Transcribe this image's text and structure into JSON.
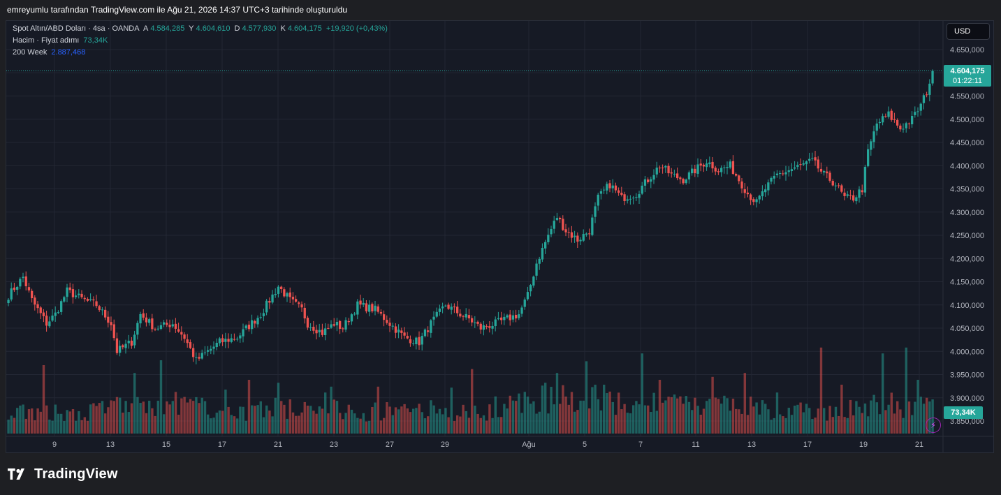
{
  "header": {
    "attribution": "emreyumlu tarafından TradingView.com ile Ağu 21, 2026 14:37 UTC+3 tarihinde oluşturuldu"
  },
  "legend": {
    "symbol": "Spot Altın/ABD Doları · 4sa · OANDA",
    "open_label": "A",
    "open_value": "4.584,285",
    "high_label": "Y",
    "high_value": "4.604,610",
    "low_label": "D",
    "low_value": "4.577,930",
    "close_label": "K",
    "close_value": "4.604,175",
    "change": "+19,920 (+0,43%)",
    "volume_label": "Hacim · Fiyat adımı",
    "volume_value": "73,34K",
    "ma_label": "200 Week",
    "ma_value": "2.887,468"
  },
  "toolbar": {
    "currency_label": "USD"
  },
  "price_tag": {
    "value": "4.604,175",
    "countdown": "01:22:11"
  },
  "volume_tag": {
    "value": "73,34K"
  },
  "alert_icon": "lightning-icon",
  "brand": {
    "logo_text": "TradingView"
  },
  "colors": {
    "up": "#26a69a",
    "down": "#ef5350",
    "background": "#161a25",
    "ma_line": "#2962ff"
  },
  "chart_data": {
    "type": "candlestick",
    "y_axis_labels": [
      "4.650,000",
      "4.600,000",
      "4.550,000",
      "4.500,000",
      "4.450,000",
      "4.400,000",
      "4.350,000",
      "4.300,000",
      "4.250,000",
      "4.200,000",
      "4.150,000",
      "4.100,000",
      "4.050,000",
      "4.000,000",
      "3.950,000",
      "3.900,000",
      "3.850,000"
    ],
    "y_axis_values": [
      4650,
      4600,
      4550,
      4500,
      4450,
      4400,
      4350,
      4300,
      4250,
      4200,
      4150,
      4100,
      4050,
      4000,
      3950,
      3900,
      3850
    ],
    "x_axis_labels": [
      "9",
      "13",
      "15",
      "17",
      "21",
      "23",
      "27",
      "29",
      "Ağu",
      "5",
      "7",
      "11",
      "13",
      "17",
      "19",
      "21"
    ],
    "last_close": 4604.175,
    "grid": true,
    "anchors": [
      [
        0,
        4120
      ],
      [
        5,
        4160
      ],
      [
        8,
        4110
      ],
      [
        10,
        4090
      ],
      [
        13,
        4060
      ],
      [
        16,
        4080
      ],
      [
        20,
        4130
      ],
      [
        26,
        4110
      ],
      [
        30,
        4100
      ],
      [
        35,
        4060
      ],
      [
        37,
        4000
      ],
      [
        42,
        4020
      ],
      [
        45,
        4080
      ],
      [
        50,
        4050
      ],
      [
        56,
        4060
      ],
      [
        60,
        4030
      ],
      [
        64,
        3980
      ],
      [
        68,
        4000
      ],
      [
        72,
        4020
      ],
      [
        78,
        4030
      ],
      [
        86,
        4080
      ],
      [
        92,
        4140
      ],
      [
        96,
        4110
      ],
      [
        100,
        4090
      ],
      [
        102,
        4060
      ],
      [
        107,
        4040
      ],
      [
        111,
        4060
      ],
      [
        114,
        4050
      ],
      [
        119,
        4100
      ],
      [
        125,
        4090
      ],
      [
        130,
        4060
      ],
      [
        135,
        4030
      ],
      [
        140,
        4020
      ],
      [
        144,
        4060
      ],
      [
        149,
        4100
      ],
      [
        154,
        4080
      ],
      [
        157,
        4070
      ],
      [
        161,
        4050
      ],
      [
        166,
        4060
      ],
      [
        170,
        4070
      ],
      [
        174,
        4080
      ],
      [
        177,
        4120
      ],
      [
        180,
        4190
      ],
      [
        184,
        4250
      ],
      [
        187,
        4290
      ],
      [
        190,
        4260
      ],
      [
        194,
        4240
      ],
      [
        198,
        4260
      ],
      [
        201,
        4330
      ],
      [
        205,
        4360
      ],
      [
        209,
        4330
      ],
      [
        214,
        4340
      ],
      [
        218,
        4370
      ],
      [
        222,
        4400
      ],
      [
        226,
        4380
      ],
      [
        230,
        4370
      ],
      [
        234,
        4390
      ],
      [
        238,
        4410
      ],
      [
        242,
        4390
      ],
      [
        246,
        4400
      ],
      [
        249,
        4370
      ],
      [
        252,
        4340
      ],
      [
        255,
        4320
      ],
      [
        258,
        4350
      ],
      [
        262,
        4380
      ],
      [
        266,
        4390
      ],
      [
        270,
        4400
      ],
      [
        274,
        4410
      ],
      [
        278,
        4380
      ],
      [
        282,
        4360
      ],
      [
        285,
        4330
      ],
      [
        288,
        4330
      ],
      [
        291,
        4350
      ],
      [
        293,
        4430
      ],
      [
        296,
        4490
      ],
      [
        300,
        4510
      ],
      [
        304,
        4480
      ],
      [
        308,
        4500
      ],
      [
        311,
        4530
      ],
      [
        313,
        4560
      ],
      [
        315,
        4600
      ]
    ],
    "volume_anchors": [
      [
        0,
        0.25
      ],
      [
        20,
        0.2
      ],
      [
        40,
        0.3
      ],
      [
        60,
        0.3
      ],
      [
        80,
        0.22
      ],
      [
        100,
        0.28
      ],
      [
        120,
        0.22
      ],
      [
        140,
        0.25
      ],
      [
        160,
        0.2
      ],
      [
        180,
        0.35
      ],
      [
        200,
        0.35
      ],
      [
        220,
        0.3
      ],
      [
        240,
        0.28
      ],
      [
        260,
        0.25
      ],
      [
        280,
        0.22
      ],
      [
        300,
        0.3
      ],
      [
        315,
        0.25
      ]
    ],
    "volume_spikes": [
      [
        12,
        0.7
      ],
      [
        43,
        0.62
      ],
      [
        52,
        0.75
      ],
      [
        74,
        0.45
      ],
      [
        82,
        0.55
      ],
      [
        92,
        0.52
      ],
      [
        96,
        0.35
      ],
      [
        108,
        0.42
      ],
      [
        110,
        0.48
      ],
      [
        126,
        0.48
      ],
      [
        151,
        0.47
      ],
      [
        158,
        0.66
      ],
      [
        166,
        0.38
      ],
      [
        183,
        0.52
      ],
      [
        187,
        0.62
      ],
      [
        197,
        0.74
      ],
      [
        203,
        0.5
      ],
      [
        216,
        0.82
      ],
      [
        222,
        0.55
      ],
      [
        240,
        0.58
      ],
      [
        251,
        0.62
      ],
      [
        262,
        0.42
      ],
      [
        277,
        0.88
      ],
      [
        284,
        0.5
      ],
      [
        298,
        0.82
      ],
      [
        306,
        0.88
      ],
      [
        310,
        0.55
      ]
    ]
  }
}
